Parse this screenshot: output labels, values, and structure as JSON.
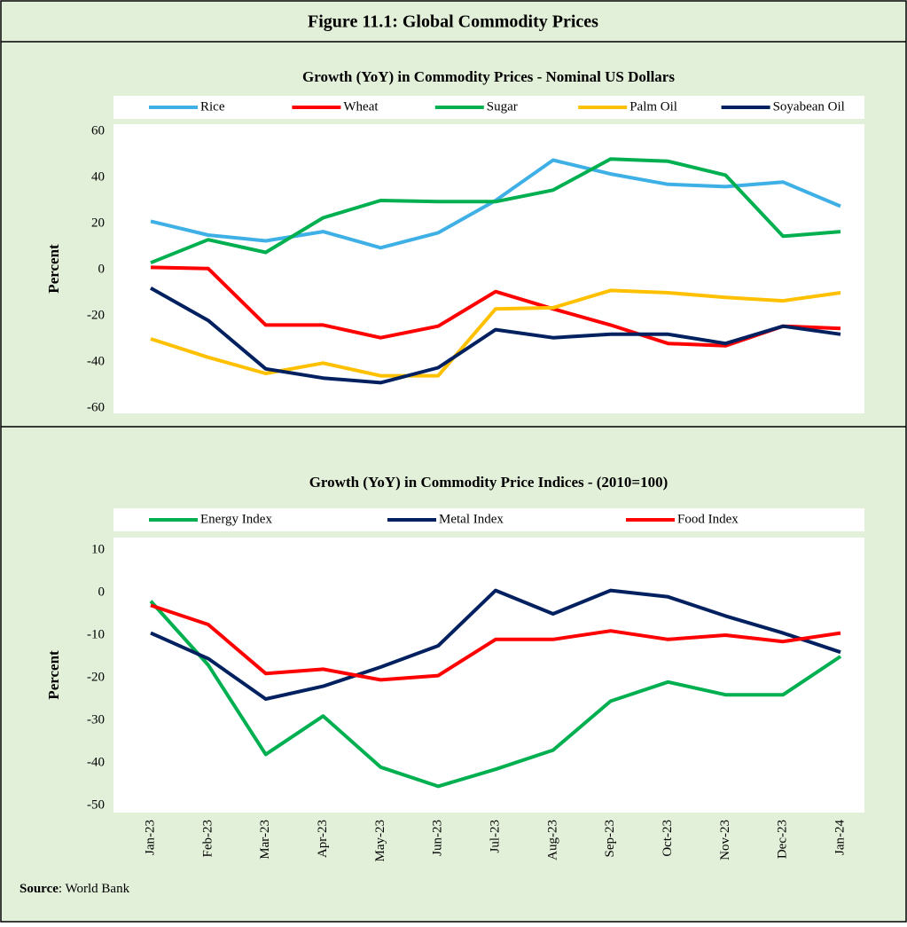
{
  "figure_title": "Figure 11.1: Global Commodity Prices",
  "source_label": "Source",
  "source_text": ": World Bank",
  "chart_data": [
    {
      "type": "line",
      "title": "Growth (YoY) in Commodity Prices - Nominal US Dollars",
      "ylabel": "Percent",
      "categories": [
        null,
        null,
        null,
        null,
        null,
        null,
        null,
        null,
        null,
        null,
        null,
        null,
        null
      ],
      "series": [
        {
          "name": "Rice",
          "color": "#3fb0e6",
          "values": [
            21,
            15,
            12.5,
            16.5,
            9.5,
            16,
            30,
            47.5,
            41.5,
            37,
            36,
            38,
            27.5
          ]
        },
        {
          "name": "Wheat",
          "color": "#ff0000",
          "values": [
            1,
            0.5,
            -24,
            -24,
            -29.5,
            -24.5,
            -9.5,
            -17,
            -24,
            -32,
            -33,
            -24.5,
            -25.5
          ]
        },
        {
          "name": "Sugar",
          "color": "#00b050",
          "values": [
            3,
            13,
            7.5,
            22.5,
            30,
            29.5,
            29.5,
            34.5,
            48,
            47,
            41,
            14.5,
            16.5
          ]
        },
        {
          "name": "Palm Oil",
          "color": "#ffc000",
          "values": [
            -30,
            -38,
            -45,
            -40.5,
            -46,
            -46,
            -17,
            -16.5,
            -9,
            -10,
            -12,
            -13.5,
            -10
          ]
        },
        {
          "name": "Soyabean Oil",
          "color": "#002060",
          "values": [
            -8,
            -22,
            -43,
            -47,
            -49,
            -42.5,
            -26,
            -29.5,
            -28,
            -28,
            -32,
            -24.5,
            -28
          ]
        }
      ],
      "ylim": [
        -60,
        60
      ],
      "yticks": [
        -60,
        -40,
        -20,
        0,
        20,
        40,
        60
      ],
      "grid": false,
      "legend": "top"
    },
    {
      "type": "line",
      "title": "Growth (YoY) in Commodity Price Indices -   (2010=100)",
      "ylabel": "Percent",
      "categories": [
        "Jan-23",
        "Feb-23",
        "Mar-23",
        "Apr-23",
        "May-23",
        "Jun-23",
        "Jul-23",
        "Aug-23",
        "Sep-23",
        "Oct-23",
        "Nov-23",
        "Dec-23",
        "Jan-24"
      ],
      "series": [
        {
          "name": "Energy Index",
          "color": "#00b050",
          "values": [
            -2,
            -17,
            -38,
            -29,
            -41,
            -45.5,
            -41.5,
            -37,
            -25.5,
            -21,
            -24,
            -24,
            -15
          ]
        },
        {
          "name": "Metal Index",
          "color": "#002060",
          "values": [
            -9.5,
            -15.5,
            -25,
            -22,
            -17.5,
            -12.5,
            0.5,
            -5,
            0.5,
            -1,
            -5.5,
            -9.5,
            -14
          ]
        },
        {
          "name": "Food Index",
          "color": "#ff0000",
          "values": [
            -3,
            -7.5,
            -19,
            -18,
            -20.5,
            -19.5,
            -11,
            -11,
            -9,
            -11,
            -10,
            -11.5,
            -9.5
          ]
        }
      ],
      "ylim": [
        -50,
        10
      ],
      "yticks": [
        -50,
        -40,
        -30,
        -20,
        -10,
        0,
        10
      ],
      "grid": false,
      "legend": "top"
    }
  ]
}
